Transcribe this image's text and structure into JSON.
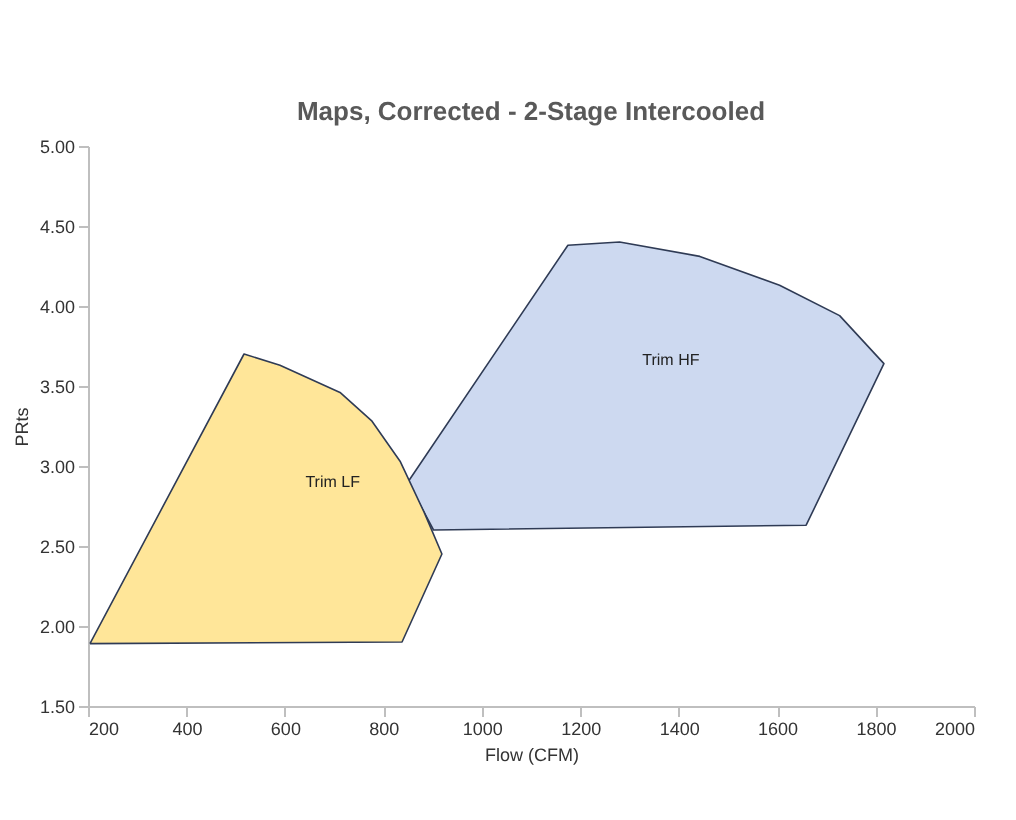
{
  "chart_data": {
    "type": "area",
    "title": "Maps, Corrected - 2-Stage Intercooled",
    "xlabel": "Flow (CFM)",
    "ylabel": "PRts",
    "series": [
      {
        "name": "Trim LF",
        "color": "#ffe699",
        "x": [
          204,
          838,
          919,
          883,
          834,
          777,
          712,
          590,
          517,
          204
        ],
        "values": [
          1.89,
          1.9,
          2.45,
          2.71,
          3.03,
          3.28,
          3.46,
          3.63,
          3.7,
          1.89
        ]
      },
      {
        "name": "Trim HF",
        "color": "#cdd9f0",
        "x": [
          850,
          1175,
          1280,
          1443,
          1605,
          1727,
          1817,
          1659,
          902,
          850
        ],
        "values": [
          2.9,
          4.38,
          4.4,
          4.31,
          4.13,
          3.94,
          3.64,
          2.63,
          2.6,
          2.9
        ]
      }
    ],
    "xlim": [
      200,
      2000
    ],
    "xticks": [
      200,
      400,
      600,
      800,
      1000,
      1200,
      1400,
      1600,
      1800,
      2000
    ],
    "ylim": [
      1.5,
      5.0
    ],
    "yticks": [
      {
        "value": 1.5,
        "label": "1.50"
      },
      {
        "value": 2.0,
        "label": "2.00"
      },
      {
        "value": 2.5,
        "label": "2.50"
      },
      {
        "value": 3.0,
        "label": "3.00"
      },
      {
        "value": 3.5,
        "label": "3.50"
      },
      {
        "value": 4.0,
        "label": "4.00"
      },
      {
        "value": 4.5,
        "label": "4.50"
      },
      {
        "value": 5.0,
        "label": "5.00"
      }
    ],
    "grid": false,
    "legend": false
  }
}
